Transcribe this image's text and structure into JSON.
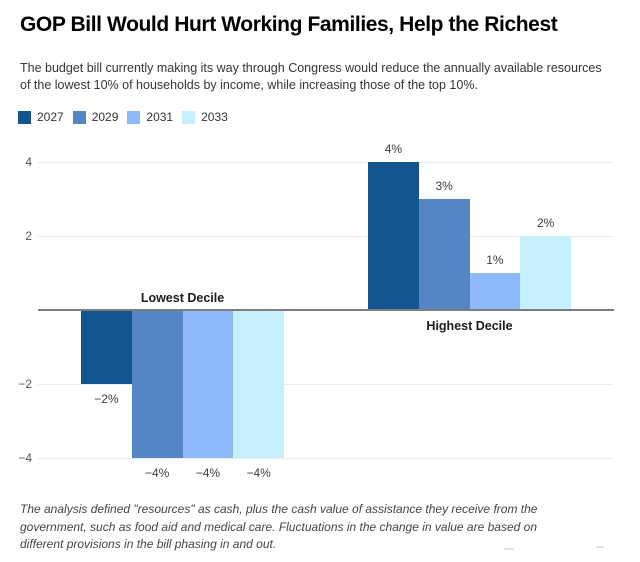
{
  "header": {
    "title": "GOP Bill Would Hurt Working Families, Help the Richest",
    "subtitle": "The budget bill currently making its way through Congress would reduce the annually available resources of the lowest 10% of households by income, while increasing those of the top 10%."
  },
  "legend": {
    "items": [
      {
        "label": "2027",
        "color": "#125591"
      },
      {
        "label": "2029",
        "color": "#5485c5"
      },
      {
        "label": "2031",
        "color": "#8db9fa"
      },
      {
        "label": "2033",
        "color": "#c6f0fd"
      }
    ]
  },
  "chart_data": {
    "type": "bar",
    "categories": [
      "Lowest Decile",
      "Highest Decile"
    ],
    "series": [
      {
        "name": "2027",
        "color": "#125591",
        "values": [
          -2,
          4
        ],
        "labels": [
          "−2%",
          "4%"
        ]
      },
      {
        "name": "2029",
        "color": "#5485c5",
        "values": [
          -4,
          3
        ],
        "labels": [
          "−4%",
          "3%"
        ]
      },
      {
        "name": "2031",
        "color": "#8db9fa",
        "values": [
          -4,
          1
        ],
        "labels": [
          "−4%",
          "1%"
        ]
      },
      {
        "name": "2033",
        "color": "#c6f0fd",
        "values": [
          -4,
          2
        ],
        "labels": [
          "−4%",
          "2%"
        ]
      }
    ],
    "yticks": [
      {
        "value": 4,
        "label": "4"
      },
      {
        "value": 2,
        "label": "2"
      },
      {
        "value": -2,
        "label": "−2"
      },
      {
        "value": -4,
        "label": "−4"
      }
    ],
    "ylim": [
      -4.6,
      4.6
    ],
    "unit_suffix": "%",
    "grid": true,
    "zero_line": true,
    "legend_position": "top-left"
  },
  "footnote": "The analysis defined \"resources\" as cash, plus the cash value of assistance they receive from the government, such as food aid and medical care. Fluctuations in the change in value are based on different provisions in the bill phasing in and out.",
  "colors": {
    "background": "#ffffff",
    "grid": "#ececec",
    "zero_line": "#7e7e7e",
    "title": "#000000",
    "subtitle": "#363636",
    "tick_label": "#555555",
    "value_label": "#3d3d3d",
    "category_label": "#1c1c1c",
    "footnote": "#454545"
  }
}
